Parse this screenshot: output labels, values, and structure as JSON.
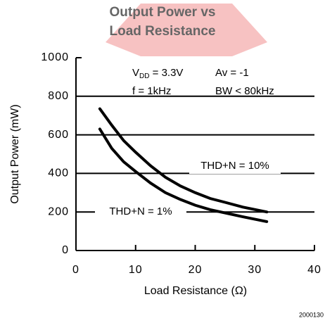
{
  "chart_data": {
    "type": "line",
    "title": [
      "Output Power vs",
      "Load Resistance"
    ],
    "x_label": "Load Resistance  (Ω)",
    "y_label": "Output Power (mW)",
    "xlim": [
      0,
      40
    ],
    "xticks": [
      0,
      10,
      20,
      30,
      40
    ],
    "ylim": [
      0,
      1000
    ],
    "yticks": [
      0,
      200,
      400,
      600,
      800,
      1000
    ],
    "grid": "horizontal",
    "conditions": {
      "vdd": {
        "main": "V",
        "sub": "DD",
        "rest": " = 3.3V"
      },
      "gain": "Av = -1",
      "freq": "f = 1kHz",
      "bw": "BW < 80kHz"
    },
    "footnote": "2000130",
    "series": [
      {
        "name": "THD+N = 10%",
        "color": "#000000",
        "x": [
          4,
          6,
          8,
          10,
          12.5,
          15,
          17.5,
          20,
          22.5,
          25,
          28,
          32
        ],
        "values": [
          735,
          650,
          570,
          510,
          440,
          380,
          335,
          300,
          270,
          250,
          225,
          200
        ]
      },
      {
        "name": "THD+N = 1%",
        "color": "#000000",
        "x": [
          4,
          6,
          8,
          10,
          12.5,
          15,
          17.5,
          20,
          22.5,
          25,
          28,
          32
        ],
        "values": [
          630,
          530,
          460,
          410,
          350,
          300,
          265,
          235,
          212,
          195,
          175,
          150
        ]
      }
    ]
  }
}
